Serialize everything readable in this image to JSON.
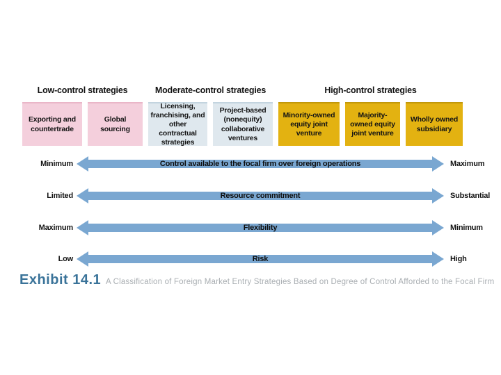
{
  "diagram": {
    "headers": [
      {
        "label": "Low-control strategies"
      },
      {
        "label": "Moderate-control strategies"
      },
      {
        "label": "High-control strategies"
      }
    ],
    "boxes": [
      {
        "label": "Exporting and countertrade",
        "group": "low-control"
      },
      {
        "label": "Global sourcing",
        "group": "low-control"
      },
      {
        "label": "Licensing, franchising, and other contractual strategies",
        "group": "moderate-control"
      },
      {
        "label": "Project-based (nonequity) collaborative ventures",
        "group": "moderate-control"
      },
      {
        "label": "Minority-owned equity joint venture",
        "group": "high-control"
      },
      {
        "label": "Majority-owned equity joint venture",
        "group": "high-control"
      },
      {
        "label": "Wholly owned subsidiary",
        "group": "high-control"
      }
    ],
    "arrows": [
      {
        "left": "Minimum",
        "label": "Control available to the focal firm over foreign operations",
        "right": "Maximum"
      },
      {
        "left": "Limited",
        "label": "Resource commitment",
        "right": "Substantial"
      },
      {
        "left": "Maximum",
        "label": "Flexibility",
        "right": "Minimum"
      },
      {
        "left": "Low",
        "label": "Risk",
        "right": "High"
      }
    ],
    "colors": {
      "low_control_fill": "#f4cfdc",
      "moderate_control_fill": "#dfe8ee",
      "high_control_fill": "#e3b211",
      "arrow_fill": "#7aa7d1",
      "exhibit_title_blue": "#3a7399",
      "caption_gray": "#a9aeb2"
    }
  },
  "footer": {
    "exhibit": "Exhibit 14.1",
    "caption": "A Classification of Foreign Market Entry Strategies Based on Degree of Control Afforded to the Focal Firm"
  }
}
